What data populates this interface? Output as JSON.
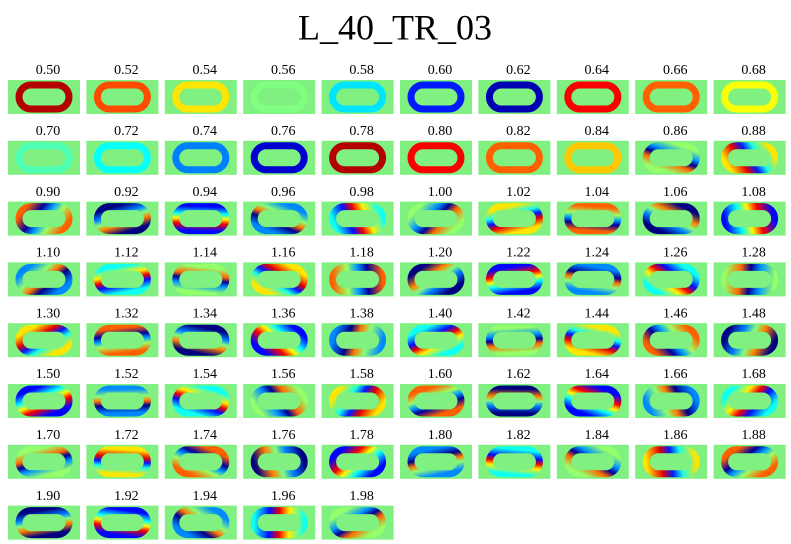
{
  "title": "L_40_TR_03",
  "panels": [
    "0.50",
    "0.52",
    "0.54",
    "0.56",
    "0.58",
    "0.60",
    "0.62",
    "0.64",
    "0.66",
    "0.68",
    "0.70",
    "0.72",
    "0.74",
    "0.76",
    "0.78",
    "0.80",
    "0.82",
    "0.84",
    "0.86",
    "0.88",
    "0.90",
    "0.92",
    "0.94",
    "0.96",
    "0.98",
    "1.00",
    "1.02",
    "1.04",
    "1.06",
    "1.08",
    "1.10",
    "1.12",
    "1.14",
    "1.16",
    "1.18",
    "1.20",
    "1.22",
    "1.24",
    "1.26",
    "1.28",
    "1.30",
    "1.32",
    "1.34",
    "1.36",
    "1.38",
    "1.40",
    "1.42",
    "1.44",
    "1.46",
    "1.48",
    "1.50",
    "1.52",
    "1.54",
    "1.56",
    "1.58",
    "1.60",
    "1.62",
    "1.64",
    "1.66",
    "1.68",
    "1.70",
    "1.72",
    "1.74",
    "1.76",
    "1.78",
    "1.80",
    "1.82",
    "1.84",
    "1.86",
    "1.88",
    "1.90",
    "1.92",
    "1.94",
    "1.96",
    "1.98"
  ]
}
